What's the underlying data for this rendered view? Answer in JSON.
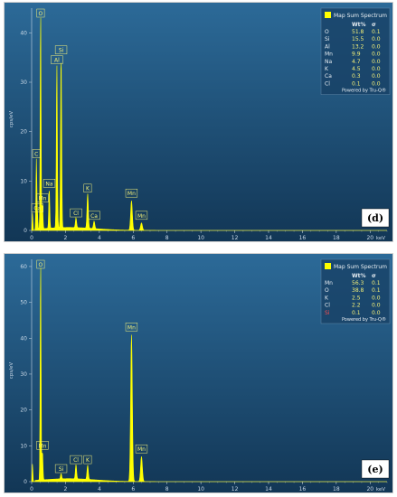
{
  "palette": {
    "bg_top": "#2c6a98",
    "bg_bottom": "#123655",
    "spectrum": "#ffff00",
    "label_box_border": "#f4f078",
    "axis_text": "#c9d8e6"
  },
  "chart_data": [
    {
      "type": "line",
      "panel_label": "(d)",
      "ylabel": "cps/eV",
      "xlabel": "keV",
      "xlim": [
        0,
        21
      ],
      "ylim": [
        0,
        45
      ],
      "xticks": [
        "0",
        "2",
        "4",
        "6",
        "8",
        "10",
        "12",
        "14",
        "16",
        "18",
        "20"
      ],
      "yticks": [
        "0",
        "10",
        "20",
        "30",
        "40"
      ],
      "peaks": [
        {
          "label": "C",
          "x": 0.28,
          "y": 14
        },
        {
          "label": "Ca",
          "x": 0.34,
          "y": 3
        },
        {
          "label": "Mn",
          "x": 0.64,
          "y": 5
        },
        {
          "label": "O",
          "x": 0.53,
          "y": 44
        },
        {
          "label": "Na",
          "x": 1.04,
          "y": 8
        },
        {
          "label": "Al",
          "x": 1.49,
          "y": 33
        },
        {
          "label": "Si",
          "x": 1.74,
          "y": 35
        },
        {
          "label": "Cl",
          "x": 2.62,
          "y": 2
        },
        {
          "label": "K",
          "x": 3.31,
          "y": 7
        },
        {
          "label": "Ca",
          "x": 3.69,
          "y": 1.5
        },
        {
          "label": "Mn",
          "x": 5.9,
          "y": 6
        },
        {
          "label": "Mn",
          "x": 6.49,
          "y": 1.5
        }
      ],
      "legend": {
        "title": "Map Sum Spectrum",
        "col_wt": "Wt%",
        "col_sigma": "σ",
        "rows": [
          {
            "el": "O",
            "wt": "51.8",
            "sigma": "0.1"
          },
          {
            "el": "Si",
            "wt": "15.5",
            "sigma": "0.0"
          },
          {
            "el": "Al",
            "wt": "13.2",
            "sigma": "0.0"
          },
          {
            "el": "Mn",
            "wt": "9.9",
            "sigma": "0.0"
          },
          {
            "el": "Na",
            "wt": "4.7",
            "sigma": "0.0"
          },
          {
            "el": "K",
            "wt": "4.5",
            "sigma": "0.0"
          },
          {
            "el": "Ca",
            "wt": "0.3",
            "sigma": "0.0"
          },
          {
            "el": "Cl",
            "wt": "0.1",
            "sigma": "0.0"
          }
        ],
        "powered": "Powered by Tru-Q®"
      }
    },
    {
      "type": "line",
      "panel_label": "(e)",
      "ylabel": "cps/eV",
      "xlabel": "keV",
      "xlim": [
        0,
        21
      ],
      "ylim": [
        0,
        62
      ],
      "xticks": [
        "0",
        "2",
        "4",
        "6",
        "8",
        "10",
        "12",
        "14",
        "16",
        "18",
        "20"
      ],
      "yticks": [
        "0",
        "10",
        "20",
        "30",
        "40",
        "50",
        "60"
      ],
      "peaks": [
        {
          "label": "O",
          "x": 0.53,
          "y": 61
        },
        {
          "label": "Mn",
          "x": 0.64,
          "y": 8
        },
        {
          "label": "Si",
          "x": 1.74,
          "y": 1.5
        },
        {
          "label": "Cl",
          "x": 2.62,
          "y": 4
        },
        {
          "label": "K",
          "x": 3.31,
          "y": 4
        },
        {
          "label": "Mn",
          "x": 5.9,
          "y": 41
        },
        {
          "label": "Mn",
          "x": 6.49,
          "y": 7
        }
      ],
      "legend": {
        "title": "Map Sum Spectrum",
        "col_wt": "Wt%",
        "col_sigma": "σ",
        "rows": [
          {
            "el": "Mn",
            "wt": "56.3",
            "sigma": "0.1"
          },
          {
            "el": "O",
            "wt": "38.8",
            "sigma": "0.1"
          },
          {
            "el": "K",
            "wt": "2.5",
            "sigma": "0.0"
          },
          {
            "el": "Cl",
            "wt": "2.2",
            "sigma": "0.0"
          },
          {
            "el": "Si",
            "wt": "0.1",
            "sigma": "0.0",
            "el_color": "#ff4d4d"
          }
        ],
        "powered": "Powered by Tru-Q®"
      }
    }
  ]
}
